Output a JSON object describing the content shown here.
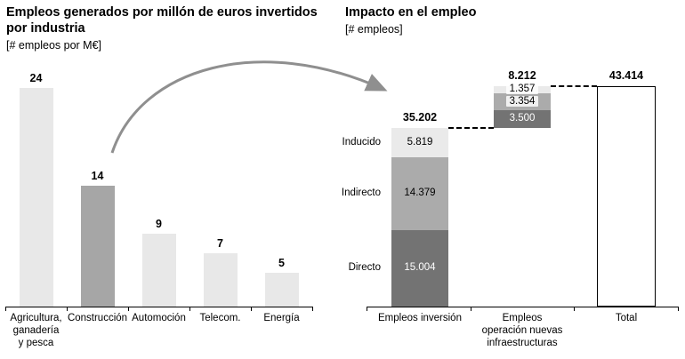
{
  "chart_data": [
    {
      "type": "bar",
      "title": "Empleos generados por millón de euros invertidos por industria",
      "subtitle": "[# empleos por M€]",
      "categories": [
        "Agricultura,\nganadería\ny pesca",
        "Construcción",
        "Automoción",
        "Telecom.",
        "Energía"
      ],
      "values": [
        24,
        14,
        9,
        7,
        5
      ],
      "value_labels": [
        "24",
        "14",
        "9",
        "7",
        "5"
      ],
      "highlight_index": 1,
      "xlabel": "",
      "ylabel": "# empleos por M€",
      "ylim": [
        0,
        26
      ],
      "grid": false,
      "colors": {
        "bar": "#e8e8e8",
        "highlight": "#a6a6a6",
        "axis": "#000000"
      }
    },
    {
      "type": "stacked_bar_waterfall",
      "title": "Impacto en el empleo",
      "subtitle": "[# empleos]",
      "categories": [
        "Empleos inversión",
        "Empleos\noperación nuevas\ninfraestructuras",
        "Total"
      ],
      "series": [
        {
          "name": "Directo",
          "values": [
            15004,
            3500
          ],
          "labels": [
            "15.004",
            "3.500"
          ],
          "color": "#737373",
          "text_color": "#ffffff"
        },
        {
          "name": "Indirecto",
          "values": [
            14379,
            3354
          ],
          "labels": [
            "14.379",
            "3.354"
          ],
          "color": "#ababab",
          "text_color": "#000000"
        },
        {
          "name": "Inducido",
          "values": [
            5819,
            1357
          ],
          "labels": [
            "5.819",
            "1.357"
          ],
          "color": "#eaeaea",
          "text_color": "#000000"
        }
      ],
      "totals": {
        "values": [
          35202,
          8212,
          43414
        ],
        "labels": [
          "35.202",
          "8.212",
          "43.414"
        ]
      },
      "scale_max": 43414,
      "grid": false,
      "legend_position": "left-of-first-bar",
      "colors": {
        "total_bar_fill": "#ffffff",
        "total_bar_border": "#000000",
        "axis": "#000000",
        "connector": "#000000"
      }
    }
  ],
  "decorations": {
    "arrow": {
      "meaning": "links Construcción bar to employment impact chart",
      "color": "#8f8f8f"
    }
  }
}
